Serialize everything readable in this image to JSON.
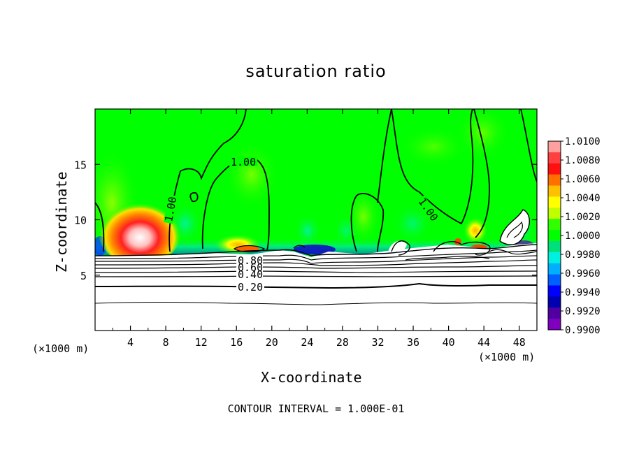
{
  "chart_data": {
    "type": "heatmap",
    "title": "saturation ratio",
    "xlabel": "X-coordinate",
    "ylabel": "Z-coordinate",
    "x_unit_left": "(×1000 m)",
    "x_unit_right": "(×1000 m)",
    "x_ticks": [
      "4",
      "8",
      "12",
      "16",
      "20",
      "24",
      "28",
      "32",
      "36",
      "40",
      "44",
      "48"
    ],
    "y_ticks": [
      "5",
      "10",
      "15"
    ],
    "xlim": [
      0,
      50
    ],
    "ylim": [
      0,
      20
    ],
    "colorbar": {
      "labels": [
        "1.0100",
        "1.0080",
        "1.0060",
        "1.0040",
        "1.0020",
        "1.0000",
        "0.9980",
        "0.9960",
        "0.9940",
        "0.9920",
        "0.9900"
      ],
      "colors": [
        "#ffa0a0",
        "#ff4040",
        "#ff1010",
        "#ff7000",
        "#ffc000",
        "#ffff00",
        "#c0ff00",
        "#30ff00",
        "#00ff00",
        "#00e07a",
        "#00f0e0",
        "#00b0ff",
        "#0060ff",
        "#0000ff",
        "#0000b0",
        "#5000a0",
        "#8000c0"
      ]
    },
    "contour_labels": [
      "1.00",
      "1.00",
      "1.00",
      "0.80",
      "0.60",
      "0.40",
      "0.20"
    ],
    "contour_interval": "CONTOUR INTERVAL = 1.000E-01"
  }
}
